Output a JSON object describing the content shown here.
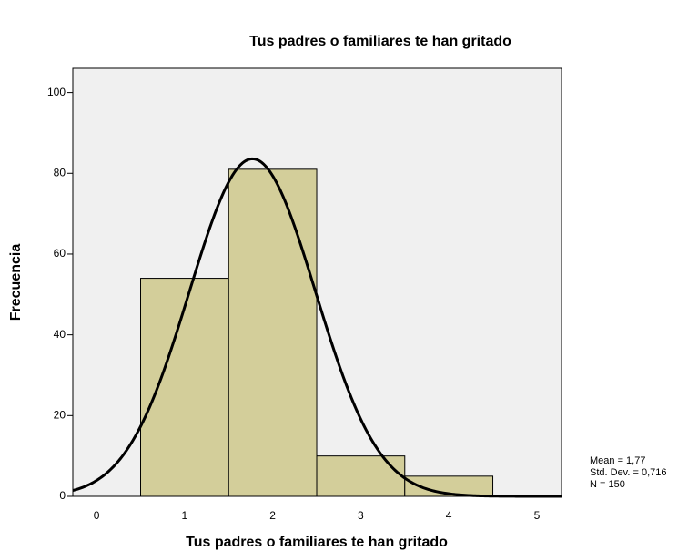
{
  "chart_data": {
    "type": "histogram",
    "title": "Tus padres o familiares te han gritado",
    "xlabel": "Tus padres o familiares te han gritado",
    "ylabel": "Frecuencia",
    "bins": [
      0.5,
      1.5,
      2.5,
      3.5,
      4.5
    ],
    "counts": [
      54,
      81,
      10,
      5
    ],
    "color": "#d3ce9a",
    "xlim": [
      -0.27,
      5.28
    ],
    "xticks": [
      0,
      1,
      2,
      3,
      4,
      5
    ],
    "ylim": [
      0,
      106
    ],
    "yticks": [
      0,
      20,
      40,
      60,
      80,
      100
    ],
    "mean": 1.77,
    "sd": 0.716,
    "n": 150,
    "stats_labels": [
      "Mean = 1,77",
      "Std. Dev. = 0,716",
      "N = 150"
    ]
  }
}
